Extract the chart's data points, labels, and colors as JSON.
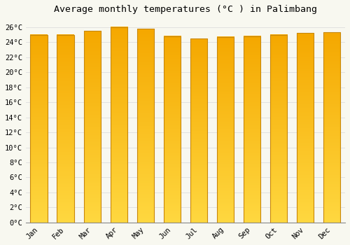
{
  "title": "Average monthly temperatures (°C ) in Palimbang",
  "months": [
    "Jan",
    "Feb",
    "Mar",
    "Apr",
    "May",
    "Jun",
    "Jul",
    "Aug",
    "Sep",
    "Oct",
    "Nov",
    "Dec"
  ],
  "temperatures": [
    25.0,
    25.0,
    25.5,
    26.0,
    25.8,
    24.8,
    24.5,
    24.7,
    24.8,
    25.0,
    25.2,
    25.3
  ],
  "bar_color_top": "#F5A800",
  "bar_color_bottom": "#FFD840",
  "bar_edge_color": "#C8880A",
  "background_color": "#F8F8F0",
  "grid_color": "#DDDDDD",
  "ylim": [
    0,
    27
  ],
  "ytick_step": 2,
  "title_fontsize": 9.5,
  "tick_fontsize": 7.5,
  "font_family": "monospace"
}
